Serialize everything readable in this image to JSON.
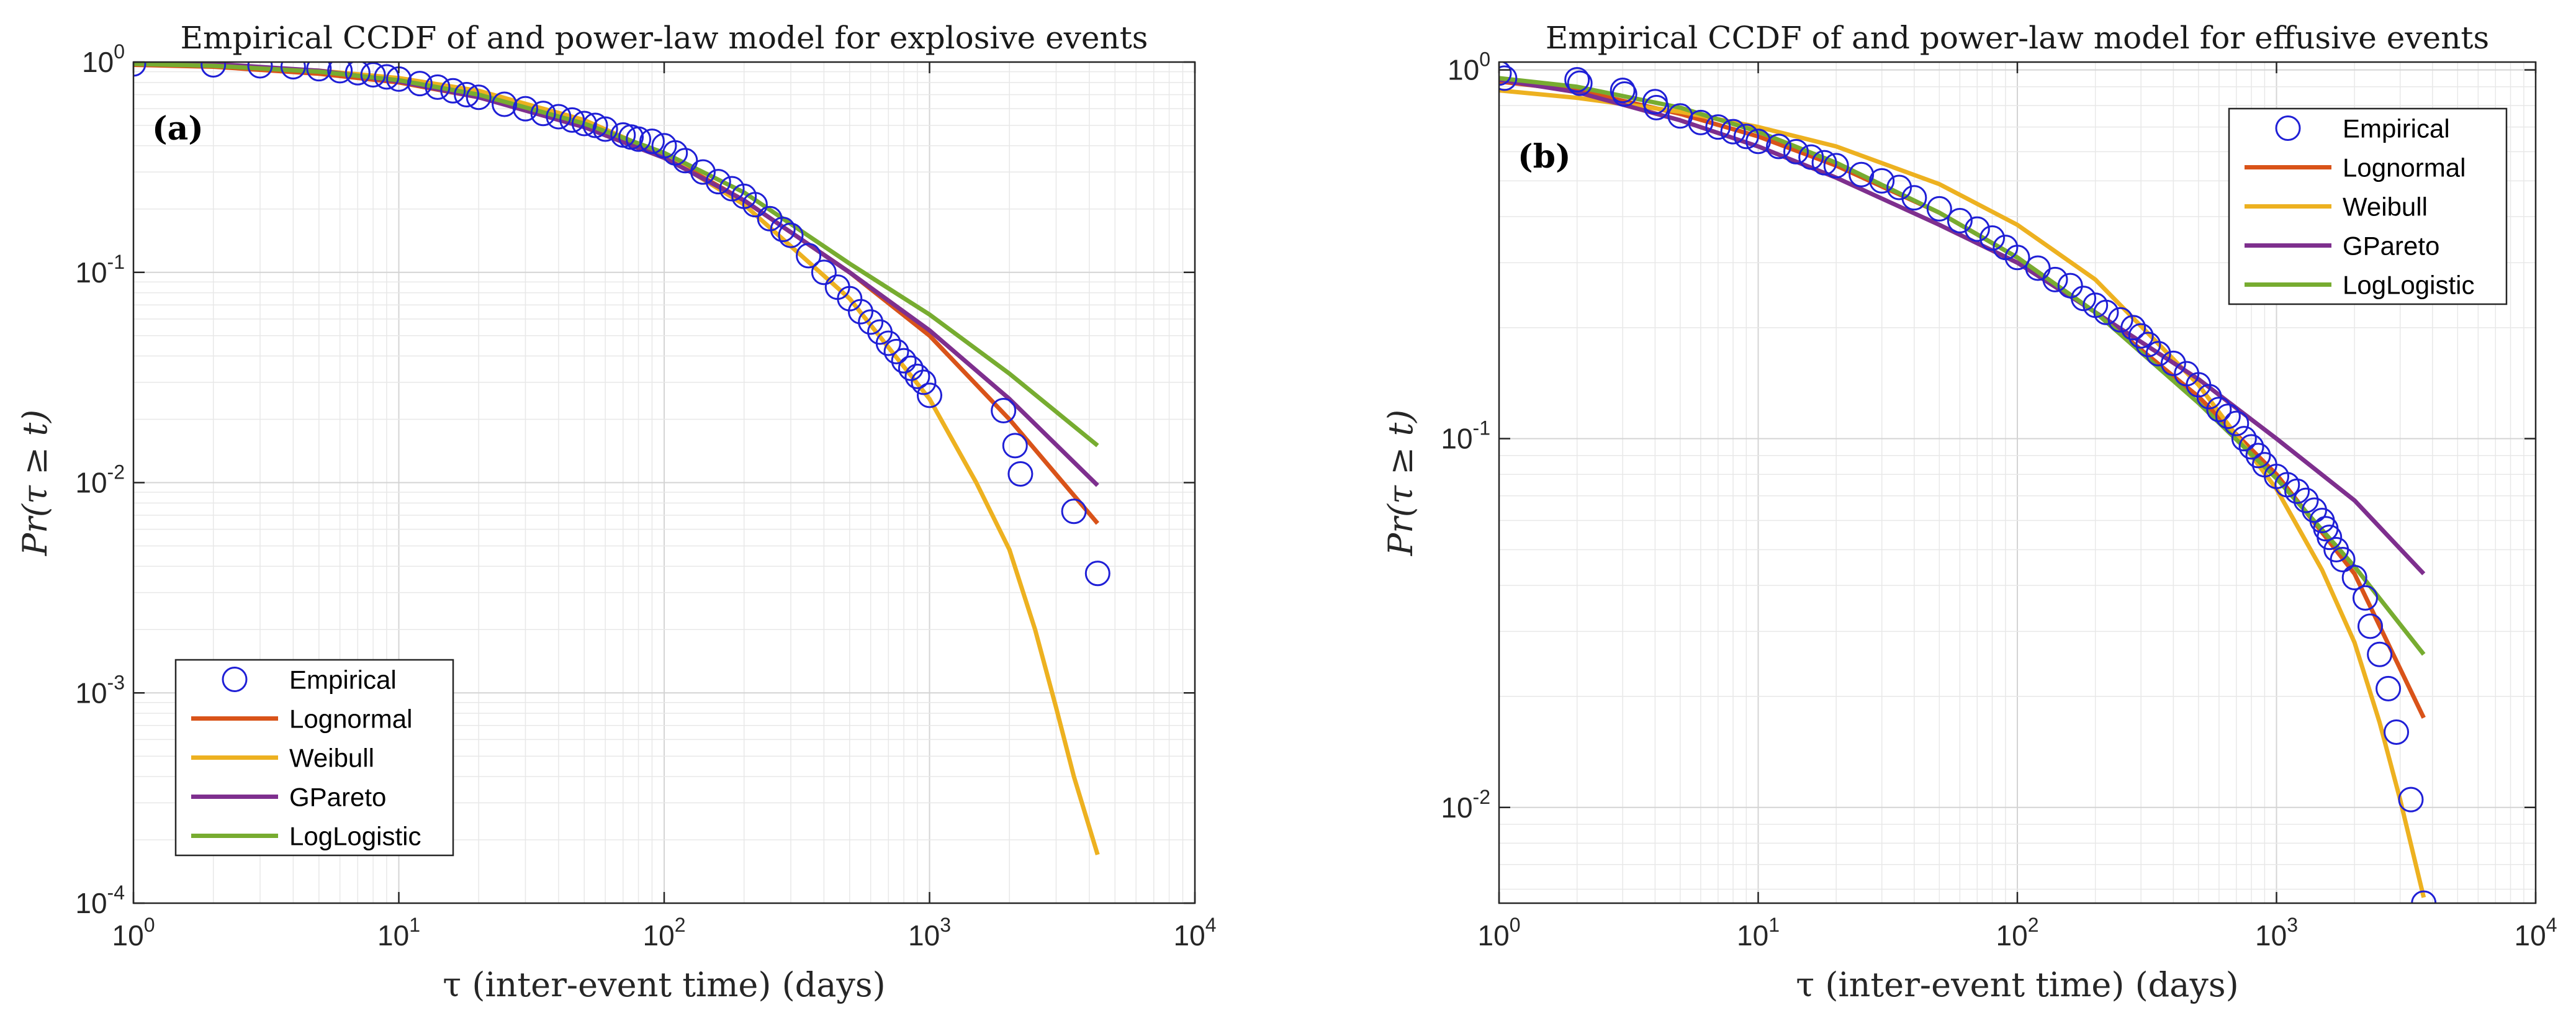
{
  "chart_data": [
    {
      "type": "line",
      "panel_tag": "(a)",
      "title": "Empirical CCDF of and power-law model for explosive events",
      "xlabel": "τ (inter-event time) (days)",
      "ylabel": "Pr(τ ≥ t)",
      "xscale": "log",
      "yscale": "log",
      "xlim": [
        1,
        10000
      ],
      "ylim": [
        0.0001,
        1
      ],
      "xticks": [
        1,
        10,
        100,
        1000,
        10000
      ],
      "yticks": [
        0.0001,
        0.001,
        0.01,
        0.1,
        1
      ],
      "grid": true,
      "legend_position": "bottom-left",
      "legend": [
        "Empirical",
        "Lognormal",
        "Weibull",
        "GPareto",
        "LogLogistic"
      ],
      "colors": {
        "Empirical": "#1f1fd6",
        "Lognormal": "#d95319",
        "Weibull": "#edb120",
        "GPareto": "#7e2f8e",
        "LogLogistic": "#77ac30"
      },
      "empirical": {
        "x": [
          1,
          2,
          3,
          4,
          5,
          6,
          7,
          8,
          9,
          10,
          12,
          14,
          16,
          18,
          20,
          25,
          30,
          35,
          40,
          45,
          50,
          55,
          60,
          70,
          75,
          80,
          90,
          100,
          110,
          120,
          140,
          160,
          180,
          200,
          220,
          250,
          280,
          300,
          350,
          400,
          450,
          500,
          550,
          600,
          650,
          700,
          750,
          800,
          850,
          900,
          950,
          1000,
          1900,
          2100,
          2200,
          3500,
          4300
        ],
        "y": [
          0.98,
          0.97,
          0.96,
          0.95,
          0.93,
          0.91,
          0.89,
          0.87,
          0.85,
          0.83,
          0.79,
          0.76,
          0.73,
          0.7,
          0.68,
          0.63,
          0.6,
          0.57,
          0.55,
          0.53,
          0.51,
          0.5,
          0.48,
          0.45,
          0.44,
          0.43,
          0.42,
          0.4,
          0.37,
          0.34,
          0.3,
          0.27,
          0.25,
          0.23,
          0.21,
          0.18,
          0.16,
          0.15,
          0.12,
          0.1,
          0.085,
          0.075,
          0.065,
          0.058,
          0.052,
          0.046,
          0.042,
          0.038,
          0.035,
          0.032,
          0.03,
          0.026,
          0.022,
          0.015,
          0.011,
          0.0073,
          0.0037
        ]
      },
      "series": [
        {
          "name": "Lognormal",
          "x": [
            1,
            2,
            5,
            10,
            20,
            50,
            100,
            200,
            500,
            1000,
            2000,
            4300
          ],
          "values": [
            0.97,
            0.95,
            0.88,
            0.8,
            0.68,
            0.5,
            0.36,
            0.22,
            0.1,
            0.05,
            0.02,
            0.0064
          ]
        },
        {
          "name": "Weibull",
          "x": [
            1,
            2,
            5,
            10,
            20,
            50,
            100,
            200,
            500,
            1000,
            1500,
            2000,
            2500,
            3000,
            3500,
            4300
          ],
          "values": [
            0.99,
            0.96,
            0.91,
            0.84,
            0.73,
            0.53,
            0.36,
            0.21,
            0.075,
            0.025,
            0.01,
            0.0048,
            0.002,
            0.00085,
            0.0004,
            0.00017
          ]
        },
        {
          "name": "GPareto",
          "x": [
            1,
            2,
            5,
            10,
            20,
            50,
            100,
            200,
            500,
            1000,
            2000,
            4300
          ],
          "values": [
            1.0,
            0.98,
            0.91,
            0.81,
            0.68,
            0.49,
            0.35,
            0.22,
            0.1,
            0.053,
            0.025,
            0.0097
          ]
        },
        {
          "name": "LogLogistic",
          "x": [
            1,
            2,
            5,
            10,
            20,
            50,
            100,
            200,
            500,
            1000,
            2000,
            4300
          ],
          "values": [
            0.98,
            0.96,
            0.9,
            0.82,
            0.7,
            0.51,
            0.37,
            0.24,
            0.11,
            0.063,
            0.033,
            0.015
          ]
        }
      ]
    },
    {
      "type": "line",
      "panel_tag": "(b)",
      "title": "Empirical CCDF of and power-law model for effusive events",
      "xlabel": "τ (inter-event time) (days)",
      "ylabel": "Pr(τ ≥ t)",
      "xscale": "log",
      "yscale": "log",
      "xlim": [
        1,
        10000
      ],
      "ylim": [
        0.0055,
        1.05
      ],
      "xticks": [
        1,
        10,
        100,
        1000,
        10000
      ],
      "yticks": [
        0.01,
        0.1,
        1
      ],
      "grid": true,
      "legend_position": "top-right",
      "legend": [
        "Empirical",
        "Lognormal",
        "Weibull",
        "GPareto",
        "LogLogistic"
      ],
      "colors": {
        "Empirical": "#1f1fd6",
        "Lognormal": "#d95319",
        "Weibull": "#edb120",
        "GPareto": "#7e2f8e",
        "LogLogistic": "#77ac30"
      },
      "empirical": {
        "x": [
          1,
          1.05,
          2,
          2.05,
          3,
          3.05,
          4,
          4.05,
          5,
          6,
          7,
          8,
          9,
          10,
          12,
          14,
          16,
          18,
          20,
          25,
          30,
          35,
          40,
          50,
          60,
          70,
          80,
          90,
          100,
          120,
          140,
          160,
          180,
          200,
          220,
          250,
          280,
          300,
          320,
          350,
          400,
          450,
          500,
          550,
          600,
          650,
          700,
          750,
          800,
          850,
          900,
          1000,
          1100,
          1200,
          1300,
          1400,
          1500,
          1550,
          1600,
          1700,
          1800,
          2000,
          2200,
          2300,
          2500,
          2700,
          2900,
          3300,
          3700
        ],
        "y": [
          0.98,
          0.95,
          0.94,
          0.92,
          0.88,
          0.86,
          0.82,
          0.79,
          0.75,
          0.72,
          0.7,
          0.68,
          0.66,
          0.64,
          0.62,
          0.6,
          0.58,
          0.56,
          0.55,
          0.52,
          0.5,
          0.48,
          0.45,
          0.42,
          0.39,
          0.37,
          0.35,
          0.33,
          0.31,
          0.29,
          0.27,
          0.26,
          0.24,
          0.23,
          0.22,
          0.21,
          0.2,
          0.19,
          0.18,
          0.17,
          0.16,
          0.15,
          0.14,
          0.13,
          0.12,
          0.115,
          0.11,
          0.1,
          0.095,
          0.09,
          0.085,
          0.079,
          0.075,
          0.072,
          0.068,
          0.064,
          0.06,
          0.057,
          0.054,
          0.05,
          0.047,
          0.042,
          0.037,
          0.031,
          0.026,
          0.021,
          0.016,
          0.0105,
          0.0055
        ]
      },
      "series": [
        {
          "name": "Lognormal",
          "x": [
            1,
            2,
            5,
            10,
            20,
            50,
            100,
            200,
            500,
            1000,
            2000,
            3700
          ],
          "values": [
            0.93,
            0.88,
            0.76,
            0.66,
            0.55,
            0.41,
            0.31,
            0.22,
            0.13,
            0.08,
            0.043,
            0.0175
          ]
        },
        {
          "name": "Weibull",
          "x": [
            1,
            2,
            5,
            10,
            20,
            50,
            100,
            200,
            500,
            1000,
            1500,
            2000,
            2500,
            3000,
            3700
          ],
          "values": [
            0.88,
            0.84,
            0.77,
            0.7,
            0.62,
            0.49,
            0.38,
            0.27,
            0.14,
            0.073,
            0.044,
            0.028,
            0.017,
            0.0105,
            0.0057
          ]
        },
        {
          "name": "GPareto",
          "x": [
            1,
            2,
            5,
            10,
            20,
            50,
            100,
            200,
            500,
            1000,
            2000,
            3700
          ],
          "values": [
            0.94,
            0.87,
            0.73,
            0.62,
            0.51,
            0.38,
            0.3,
            0.22,
            0.145,
            0.1,
            0.068,
            0.043
          ]
        },
        {
          "name": "LogLogistic",
          "x": [
            1,
            2,
            5,
            10,
            20,
            50,
            100,
            200,
            500,
            1000,
            2000,
            3700
          ],
          "values": [
            0.95,
            0.9,
            0.79,
            0.68,
            0.56,
            0.41,
            0.31,
            0.22,
            0.125,
            0.078,
            0.045,
            0.026
          ]
        }
      ]
    }
  ]
}
